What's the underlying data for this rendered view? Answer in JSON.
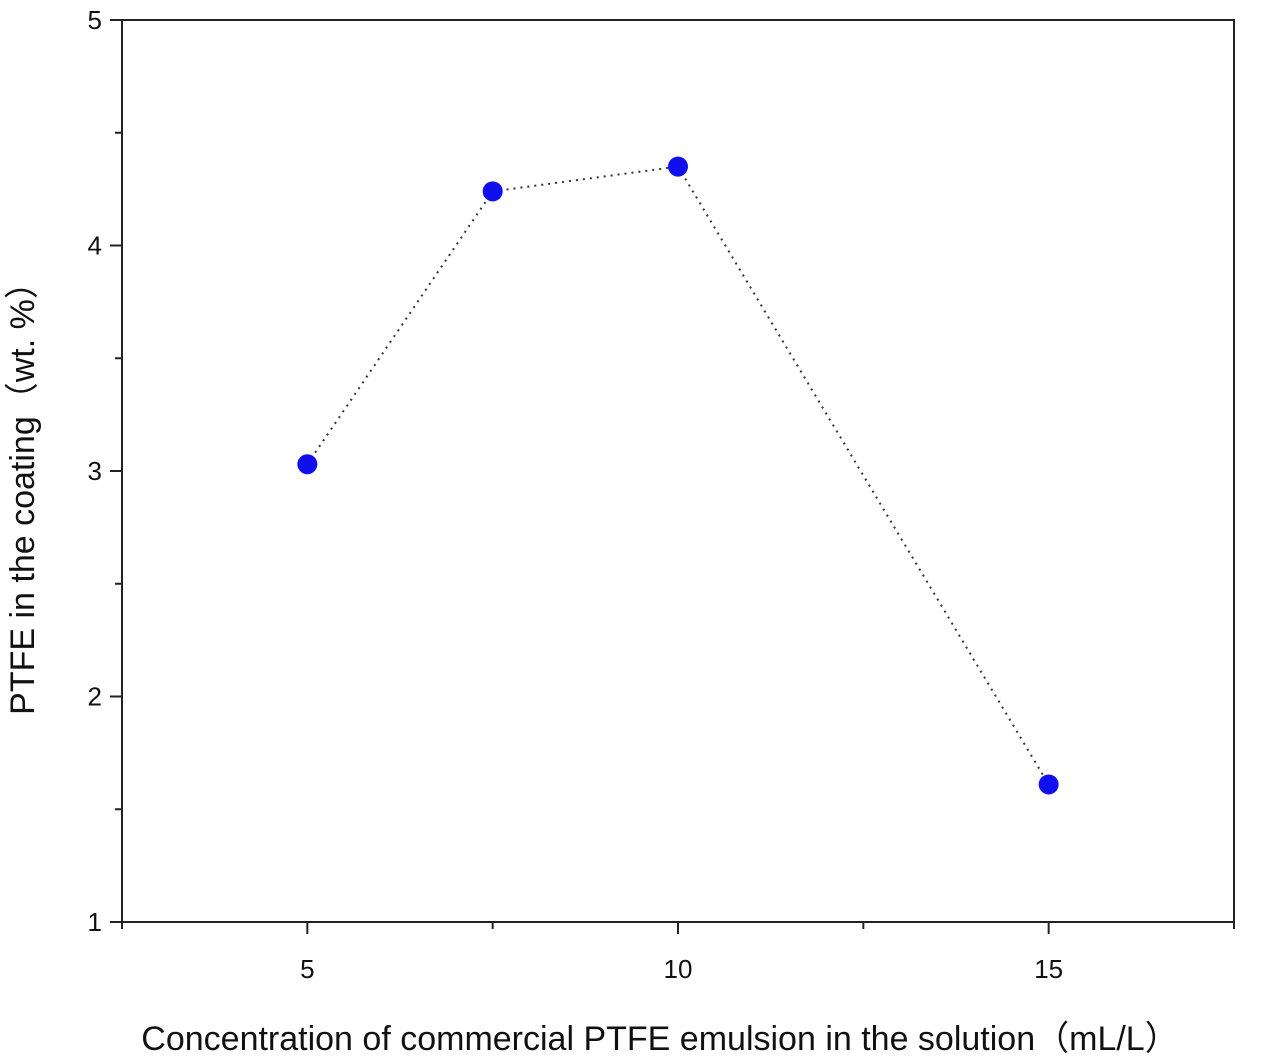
{
  "chart_data": {
    "type": "scatter",
    "title": "",
    "xlabel": "Concentration of commercial PTFE emulsion in the solution（mL/L）",
    "ylabel": "PTFE in the coating（wt. %）",
    "xlim": [
      2.5,
      17.5
    ],
    "ylim": [
      1,
      5
    ],
    "x_major_ticks": [
      5,
      10,
      15
    ],
    "x_minor_ticks": [
      2.5,
      7.5,
      12.5,
      17.5
    ],
    "y_major_ticks": [
      1,
      2,
      3,
      4,
      5
    ],
    "y_minor_ticks": [
      1.5,
      2.5,
      3.5,
      4.5
    ],
    "x_tick_labels": [
      "5",
      "10",
      "15"
    ],
    "y_tick_labels": [
      "1",
      "2",
      "3",
      "4",
      "5"
    ],
    "series": [
      {
        "name": "PTFE content",
        "x": [
          5,
          7.5,
          10,
          15
        ],
        "y": [
          3.03,
          4.24,
          4.35,
          1.61
        ],
        "marker": "circle",
        "line_style": "dotted",
        "color": "#1010ee",
        "line_color": "#333333"
      }
    ],
    "grid": false,
    "legend": "none"
  }
}
